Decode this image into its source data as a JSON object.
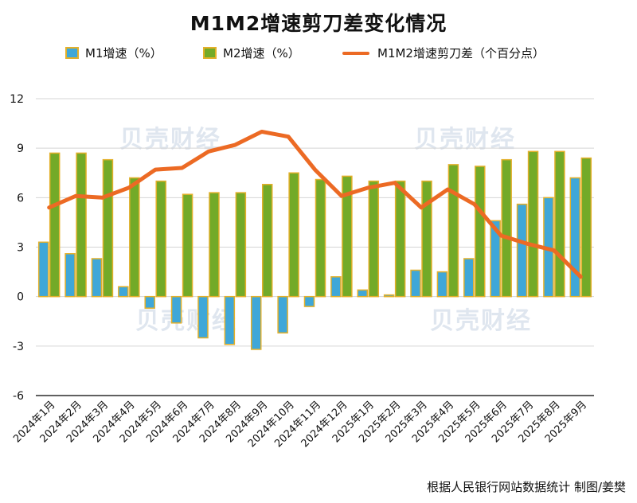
{
  "title": "M1M2增速剪刀差变化情况",
  "source": "根据人民银行网站数据统计 制图/姜樊",
  "watermark": "贝壳财经",
  "colors": {
    "m1_fill": "#3fa7d8",
    "m1_stroke": "#e3b02a",
    "m2_fill": "#73aa28",
    "m2_stroke": "#e3b02a",
    "gap_line": "#ec6a24",
    "grid": "#d4d4d4",
    "axis": "#000000"
  },
  "chart_data": {
    "type": "bar",
    "title": "M1M2增速剪刀差变化情况",
    "xlabel": "",
    "ylabel": "",
    "ylim": [
      -6,
      12
    ],
    "yticks": [
      -6,
      -3,
      0,
      3,
      6,
      9,
      12
    ],
    "grid": true,
    "legend_position": "top",
    "categories": [
      "2024年1月",
      "2024年2月",
      "2024年3月",
      "2024年4月",
      "2024年5月",
      "2024年6月",
      "2024年7月",
      "2024年8月",
      "2024年9月",
      "2024年10月",
      "2024年11月",
      "2024年12月",
      "2025年1月",
      "2025年2月",
      "2025年3月",
      "2025年4月",
      "2025年5月",
      "2025年6月",
      "2025年7月",
      "2025年8月",
      "2025年9月"
    ],
    "series": [
      {
        "name": "M1增速（%）",
        "type": "bar",
        "values": [
          3.3,
          2.6,
          2.3,
          0.6,
          -0.7,
          -1.6,
          -2.5,
          -2.9,
          -3.2,
          -2.2,
          -0.6,
          1.2,
          0.4,
          0.1,
          1.6,
          1.5,
          2.3,
          4.6,
          5.6,
          6.0,
          7.2
        ]
      },
      {
        "name": "M2增速（%）",
        "type": "bar",
        "values": [
          8.7,
          8.7,
          8.3,
          7.2,
          7.0,
          6.2,
          6.3,
          6.3,
          6.8,
          7.5,
          7.1,
          7.3,
          7.0,
          7.0,
          7.0,
          8.0,
          7.9,
          8.3,
          8.8,
          8.8,
          8.4
        ]
      },
      {
        "name": "M1M2增速剪刀差（个百分点）",
        "type": "line",
        "values": [
          5.4,
          6.1,
          6.0,
          6.6,
          7.7,
          7.8,
          8.8,
          9.2,
          10.0,
          9.7,
          7.7,
          6.1,
          6.6,
          6.9,
          5.4,
          6.5,
          5.6,
          3.7,
          3.2,
          2.8,
          1.2
        ]
      }
    ]
  }
}
